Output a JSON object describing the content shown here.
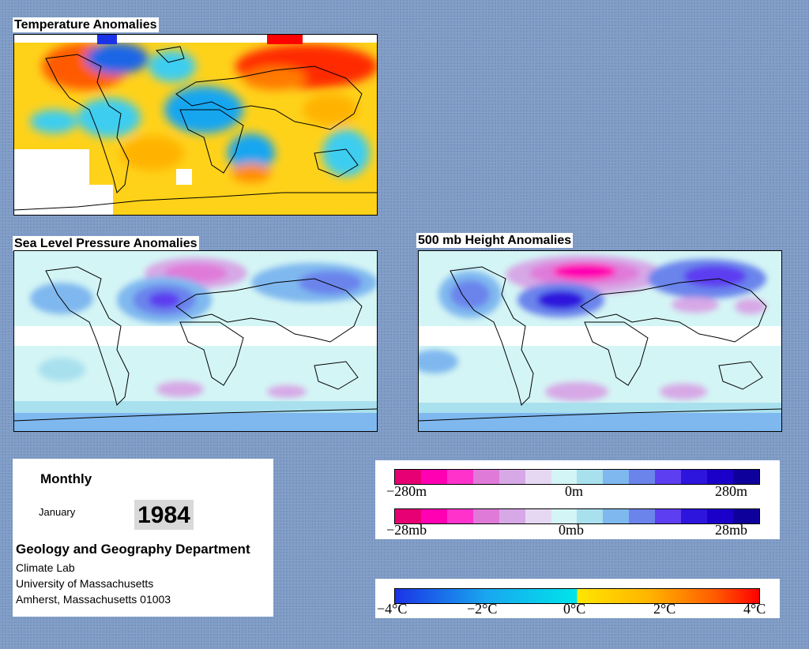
{
  "panels": {
    "temperature": {
      "title": "Temperature Anomalies"
    },
    "slp": {
      "title": "Sea Level Pressure Anomalies"
    },
    "height500": {
      "title": "500 mb Height Anomalies"
    }
  },
  "info": {
    "period": "Monthly",
    "month": "January",
    "year": "1984",
    "department": "Geology and Geography Department",
    "lines": [
      "Climate Lab",
      "University of Massachusetts",
      "Amherst, Massachusetts 01003"
    ]
  },
  "legends": {
    "height": {
      "left": "−280m",
      "center": "0m",
      "right": "280m"
    },
    "pressure": {
      "left": "−28mb",
      "center": "0mb",
      "right": "28mb"
    },
    "temperature": {
      "ticks": [
        "−4°C",
        "−2°C",
        "0°C",
        "2°C",
        "4°C"
      ]
    }
  },
  "colors": {
    "background": "#7d9bc6",
    "anomaly_scale": [
      "#e60073",
      "#ff00b3",
      "#ff33cc",
      "#e07ad9",
      "#d7a8e6",
      "#e6d8f2",
      "#d4f5f5",
      "#a9e0ee",
      "#7fb8ef",
      "#6a84ec",
      "#5d3ef0",
      "#2d15dd",
      "#1a00c8",
      "#0e009a"
    ],
    "temp_scale": [
      "#1a33e6",
      "#19a6f0",
      "#00e5ea",
      "#ffe600",
      "#ffb300",
      "#ff5a00",
      "#ff0000"
    ]
  }
}
